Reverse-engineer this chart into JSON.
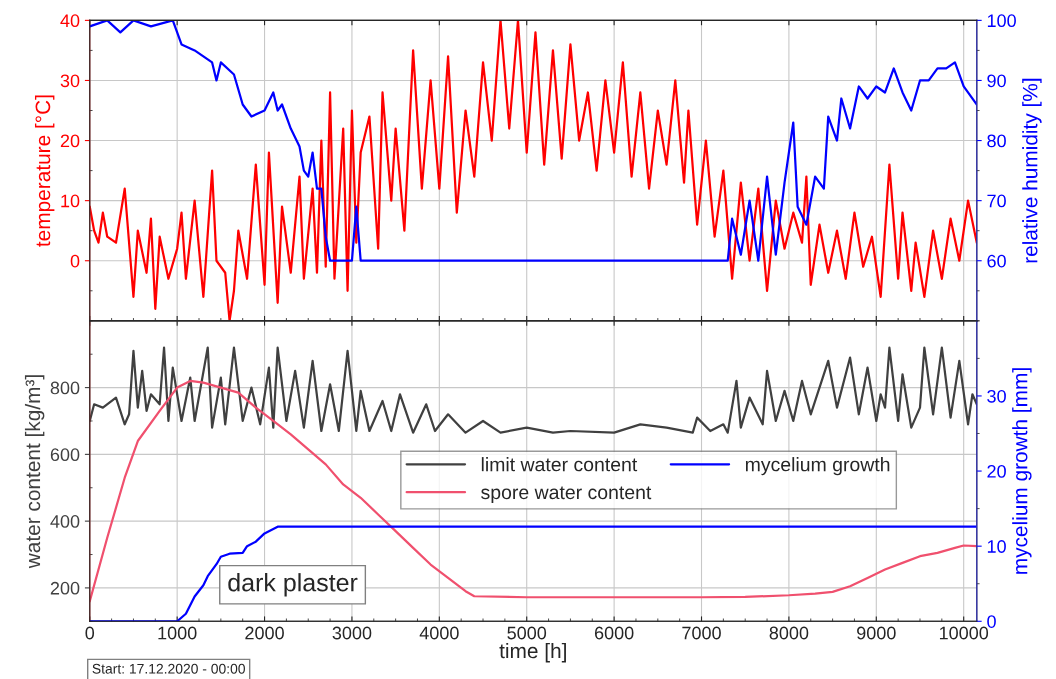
{
  "chart_data": [
    {
      "type": "line",
      "ylabel": "temperature [°C]",
      "y2label": "relative humidity [%]",
      "xlim": [
        0,
        10150
      ],
      "xticks": [
        0,
        1000,
        2000,
        3000,
        4000,
        5000,
        6000,
        7000,
        8000,
        9000,
        10000
      ],
      "ylim": [
        -10,
        40
      ],
      "yticks": [
        0,
        10,
        20,
        30,
        40
      ],
      "y2lim": [
        50,
        100
      ],
      "y2ticks": [
        60,
        70,
        80,
        90,
        100
      ],
      "grid": true,
      "tick_labels": "y",
      "legend": false,
      "series": [
        {
          "color": "#ff0000",
          "x": [
            0,
            50,
            100,
            150,
            200,
            300,
            400,
            500,
            550,
            650,
            700,
            750,
            800,
            900,
            1000,
            1050,
            1100,
            1200,
            1300,
            1400,
            1450,
            1550,
            1600,
            1650,
            1700,
            1800,
            1900,
            2000,
            2050,
            2150,
            2200,
            2300,
            2400,
            2450,
            2550,
            2600,
            2650,
            2700,
            2750,
            2800,
            2900,
            2950,
            3000,
            3050,
            3100,
            3200,
            3300,
            3350,
            3450,
            3500,
            3600,
            3700,
            3800,
            3900,
            4000,
            4100,
            4200,
            4300,
            4400,
            4500,
            4600,
            4700,
            4800,
            4900,
            5000,
            5100,
            5200,
            5300,
            5400,
            5500,
            5600,
            5700,
            5800,
            5900,
            6000,
            6100,
            6200,
            6300,
            6400,
            6500,
            6600,
            6700,
            6800,
            6850,
            6950,
            7050,
            7150,
            7250,
            7350,
            7450,
            7550,
            7650,
            7750,
            7850,
            7950,
            8050,
            8150,
            8200,
            8250,
            8350,
            8450,
            8550,
            8650,
            8750,
            8850,
            8950,
            9050,
            9150,
            9250,
            9300,
            9400,
            9450,
            9550,
            9650,
            9750,
            9850,
            9950,
            10050,
            10150
          ],
          "values": [
            9,
            5,
            3,
            8,
            4,
            3,
            12,
            -6,
            5,
            -2,
            7,
            -8,
            4,
            -3,
            2,
            8,
            -3,
            10,
            -6,
            15,
            0,
            -2,
            -10,
            -5,
            5,
            -3,
            16,
            -4,
            18,
            -7,
            9,
            -2,
            14,
            -3,
            12,
            -2,
            20,
            -1,
            28,
            -3,
            22,
            -5,
            25,
            3,
            18,
            24,
            2,
            28,
            10,
            22,
            5,
            35,
            12,
            30,
            12,
            34,
            8,
            25,
            14,
            33,
            20,
            40,
            22,
            40,
            18,
            38,
            16,
            35,
            17,
            36,
            20,
            28,
            15,
            30,
            18,
            33,
            14,
            28,
            12,
            25,
            16,
            30,
            13,
            25,
            6,
            20,
            4,
            15,
            -3,
            13,
            0,
            12,
            -5,
            10,
            2,
            8,
            3,
            14,
            -4,
            6,
            -2,
            5,
            -3,
            8,
            -1,
            4,
            -6,
            16,
            -3,
            8,
            -5,
            3,
            -6,
            5,
            -3,
            7,
            0,
            10,
            3
          ]
        },
        {
          "color": "#0000ff",
          "axis": "y2",
          "x": [
            0,
            200,
            350,
            500,
            700,
            950,
            1050,
            1200,
            1400,
            1450,
            1500,
            1650,
            1750,
            1850,
            2000,
            2100,
            2150,
            2200,
            2300,
            2400,
            2450,
            2500,
            2550,
            2600,
            2650,
            2700,
            2750,
            3000,
            3050,
            3100,
            7150,
            7300,
            7350,
            7450,
            7550,
            7650,
            7750,
            7850,
            7950,
            8050,
            8100,
            8200,
            8300,
            8400,
            8450,
            8550,
            8600,
            8700,
            8800,
            8900,
            9000,
            9100,
            9200,
            9300,
            9400,
            9500,
            9600,
            9700,
            9800,
            9900,
            10000,
            10150
          ],
          "values": [
            99,
            100,
            98,
            100,
            99,
            100,
            96,
            95,
            93,
            90,
            93,
            91,
            86,
            84,
            85,
            88,
            85,
            86,
            82,
            79,
            75,
            74,
            78,
            72,
            72,
            64,
            60,
            60,
            69,
            60,
            60,
            60,
            67,
            61,
            70,
            60,
            74,
            61,
            73,
            83,
            69,
            66,
            74,
            72,
            84,
            80,
            87,
            82,
            89,
            87,
            89,
            88,
            92,
            88,
            85,
            90,
            90,
            92,
            92,
            93,
            89,
            86
          ]
        }
      ]
    },
    {
      "type": "line",
      "xlabel": "time [h]",
      "ylabel": "water content [kg/m³]",
      "y2label": "mycelium growth [mm]",
      "xlim": [
        0,
        10150
      ],
      "xticks": [
        0,
        1000,
        2000,
        3000,
        4000,
        5000,
        6000,
        7000,
        8000,
        9000,
        10000
      ],
      "ylim": [
        100,
        1000
      ],
      "yticks": [
        200,
        400,
        600,
        800
      ],
      "y2lim": [
        0,
        40
      ],
      "y2ticks": [
        0,
        10,
        20,
        30
      ],
      "grid": true,
      "legend": "center",
      "annotations": [
        "dark plaster",
        "Start: 17.12.2020 - 00:00"
      ],
      "series": [
        {
          "name": "limit water content",
          "color": "#404040",
          "x": [
            0,
            50,
            150,
            300,
            400,
            450,
            500,
            550,
            600,
            650,
            700,
            800,
            850,
            900,
            950,
            1050,
            1150,
            1200,
            1350,
            1400,
            1500,
            1550,
            1650,
            1750,
            1850,
            1950,
            2050,
            2100,
            2150,
            2250,
            2350,
            2450,
            2550,
            2650,
            2750,
            2850,
            2950,
            3050,
            3100,
            3200,
            3350,
            3450,
            3550,
            3700,
            3850,
            3950,
            4100,
            4300,
            4500,
            4700,
            5000,
            5300,
            5500,
            6000,
            6300,
            6600,
            6900,
            6950,
            7100,
            7250,
            7300,
            7400,
            7450,
            7550,
            7700,
            7750,
            7850,
            7950,
            8050,
            8150,
            8250,
            8450,
            8550,
            8700,
            8800,
            8900,
            9000,
            9050,
            9100,
            9150,
            9250,
            9300,
            9400,
            9500,
            9550,
            9650,
            9750,
            9850,
            9950,
            10050,
            10100,
            10150
          ],
          "values": [
            700,
            750,
            740,
            770,
            690,
            720,
            910,
            740,
            850,
            730,
            780,
            750,
            920,
            700,
            860,
            700,
            830,
            700,
            920,
            680,
            830,
            690,
            920,
            700,
            800,
            690,
            860,
            680,
            920,
            700,
            850,
            680,
            880,
            670,
            810,
            670,
            910,
            670,
            790,
            670,
            760,
            670,
            780,
            665,
            750,
            670,
            720,
            665,
            700,
            665,
            680,
            665,
            670,
            665,
            690,
            680,
            665,
            710,
            670,
            690,
            665,
            820,
            680,
            770,
            690,
            850,
            700,
            790,
            700,
            820,
            720,
            880,
            740,
            890,
            720,
            860,
            700,
            780,
            740,
            920,
            700,
            840,
            680,
            740,
            920,
            720,
            920,
            710,
            880,
            690,
            780,
            750
          ]
        },
        {
          "name": "spore water content",
          "color": "#f0506e",
          "x": [
            0,
            200,
            400,
            550,
            800,
            1000,
            1150,
            1300,
            1500,
            1700,
            1900,
            2100,
            2300,
            2500,
            2700,
            2900,
            3100,
            3300,
            3500,
            3700,
            3900,
            4100,
            4300,
            4400,
            5000,
            6000,
            7000,
            7500,
            8000,
            8300,
            8500,
            8700,
            8900,
            9100,
            9300,
            9500,
            9700,
            9900,
            10000,
            10150
          ],
          "values": [
            160,
            350,
            530,
            640,
            730,
            800,
            820,
            815,
            800,
            785,
            740,
            700,
            660,
            615,
            570,
            510,
            470,
            420,
            370,
            320,
            270,
            230,
            190,
            175,
            172,
            172,
            172,
            173,
            178,
            183,
            188,
            205,
            230,
            255,
            275,
            295,
            305,
            320,
            327,
            325
          ]
        },
        {
          "name": "mycelium growth",
          "color": "#0000ff",
          "axis": "y2",
          "x": [
            0,
            1000,
            1100,
            1200,
            1300,
            1350,
            1450,
            1500,
            1600,
            1750,
            1800,
            1900,
            2000,
            2150,
            10150
          ],
          "values": [
            0,
            0,
            1,
            3.3,
            4.8,
            6,
            7.6,
            8.6,
            9,
            9.1,
            10,
            10.6,
            11.7,
            12.6,
            12.6
          ]
        }
      ]
    }
  ]
}
